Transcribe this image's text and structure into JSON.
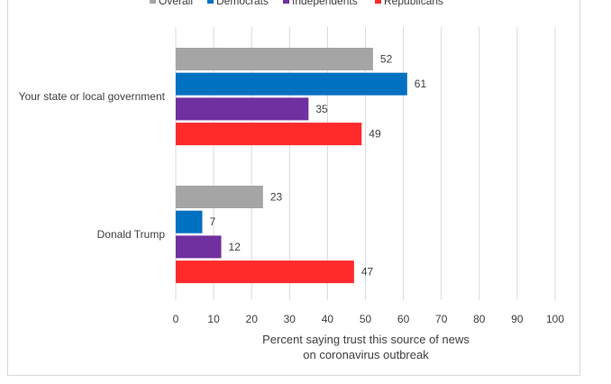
{
  "chart_data": {
    "type": "bar",
    "orientation": "horizontal",
    "categories": [
      "Your state or local government",
      "Donald Trump"
    ],
    "series": [
      {
        "name": "Overall",
        "color": "#a5a5a5",
        "values": [
          52,
          23
        ]
      },
      {
        "name": "Democrats",
        "color": "#0070c0",
        "values": [
          61,
          7
        ]
      },
      {
        "name": "Independents",
        "color": "#7030a0",
        "values": [
          35,
          12
        ]
      },
      {
        "name": "Republicans",
        "color": "#ff2a2a",
        "values": [
          49,
          47
        ]
      }
    ],
    "xlim": [
      0,
      100
    ],
    "xticks": [
      0,
      10,
      20,
      30,
      40,
      50,
      60,
      70,
      80,
      90,
      100
    ],
    "xlabel": [
      "Percent saying trust this source of news",
      "on coronavirus outbreak"
    ],
    "grid": "vertical",
    "legend_position": "top"
  }
}
